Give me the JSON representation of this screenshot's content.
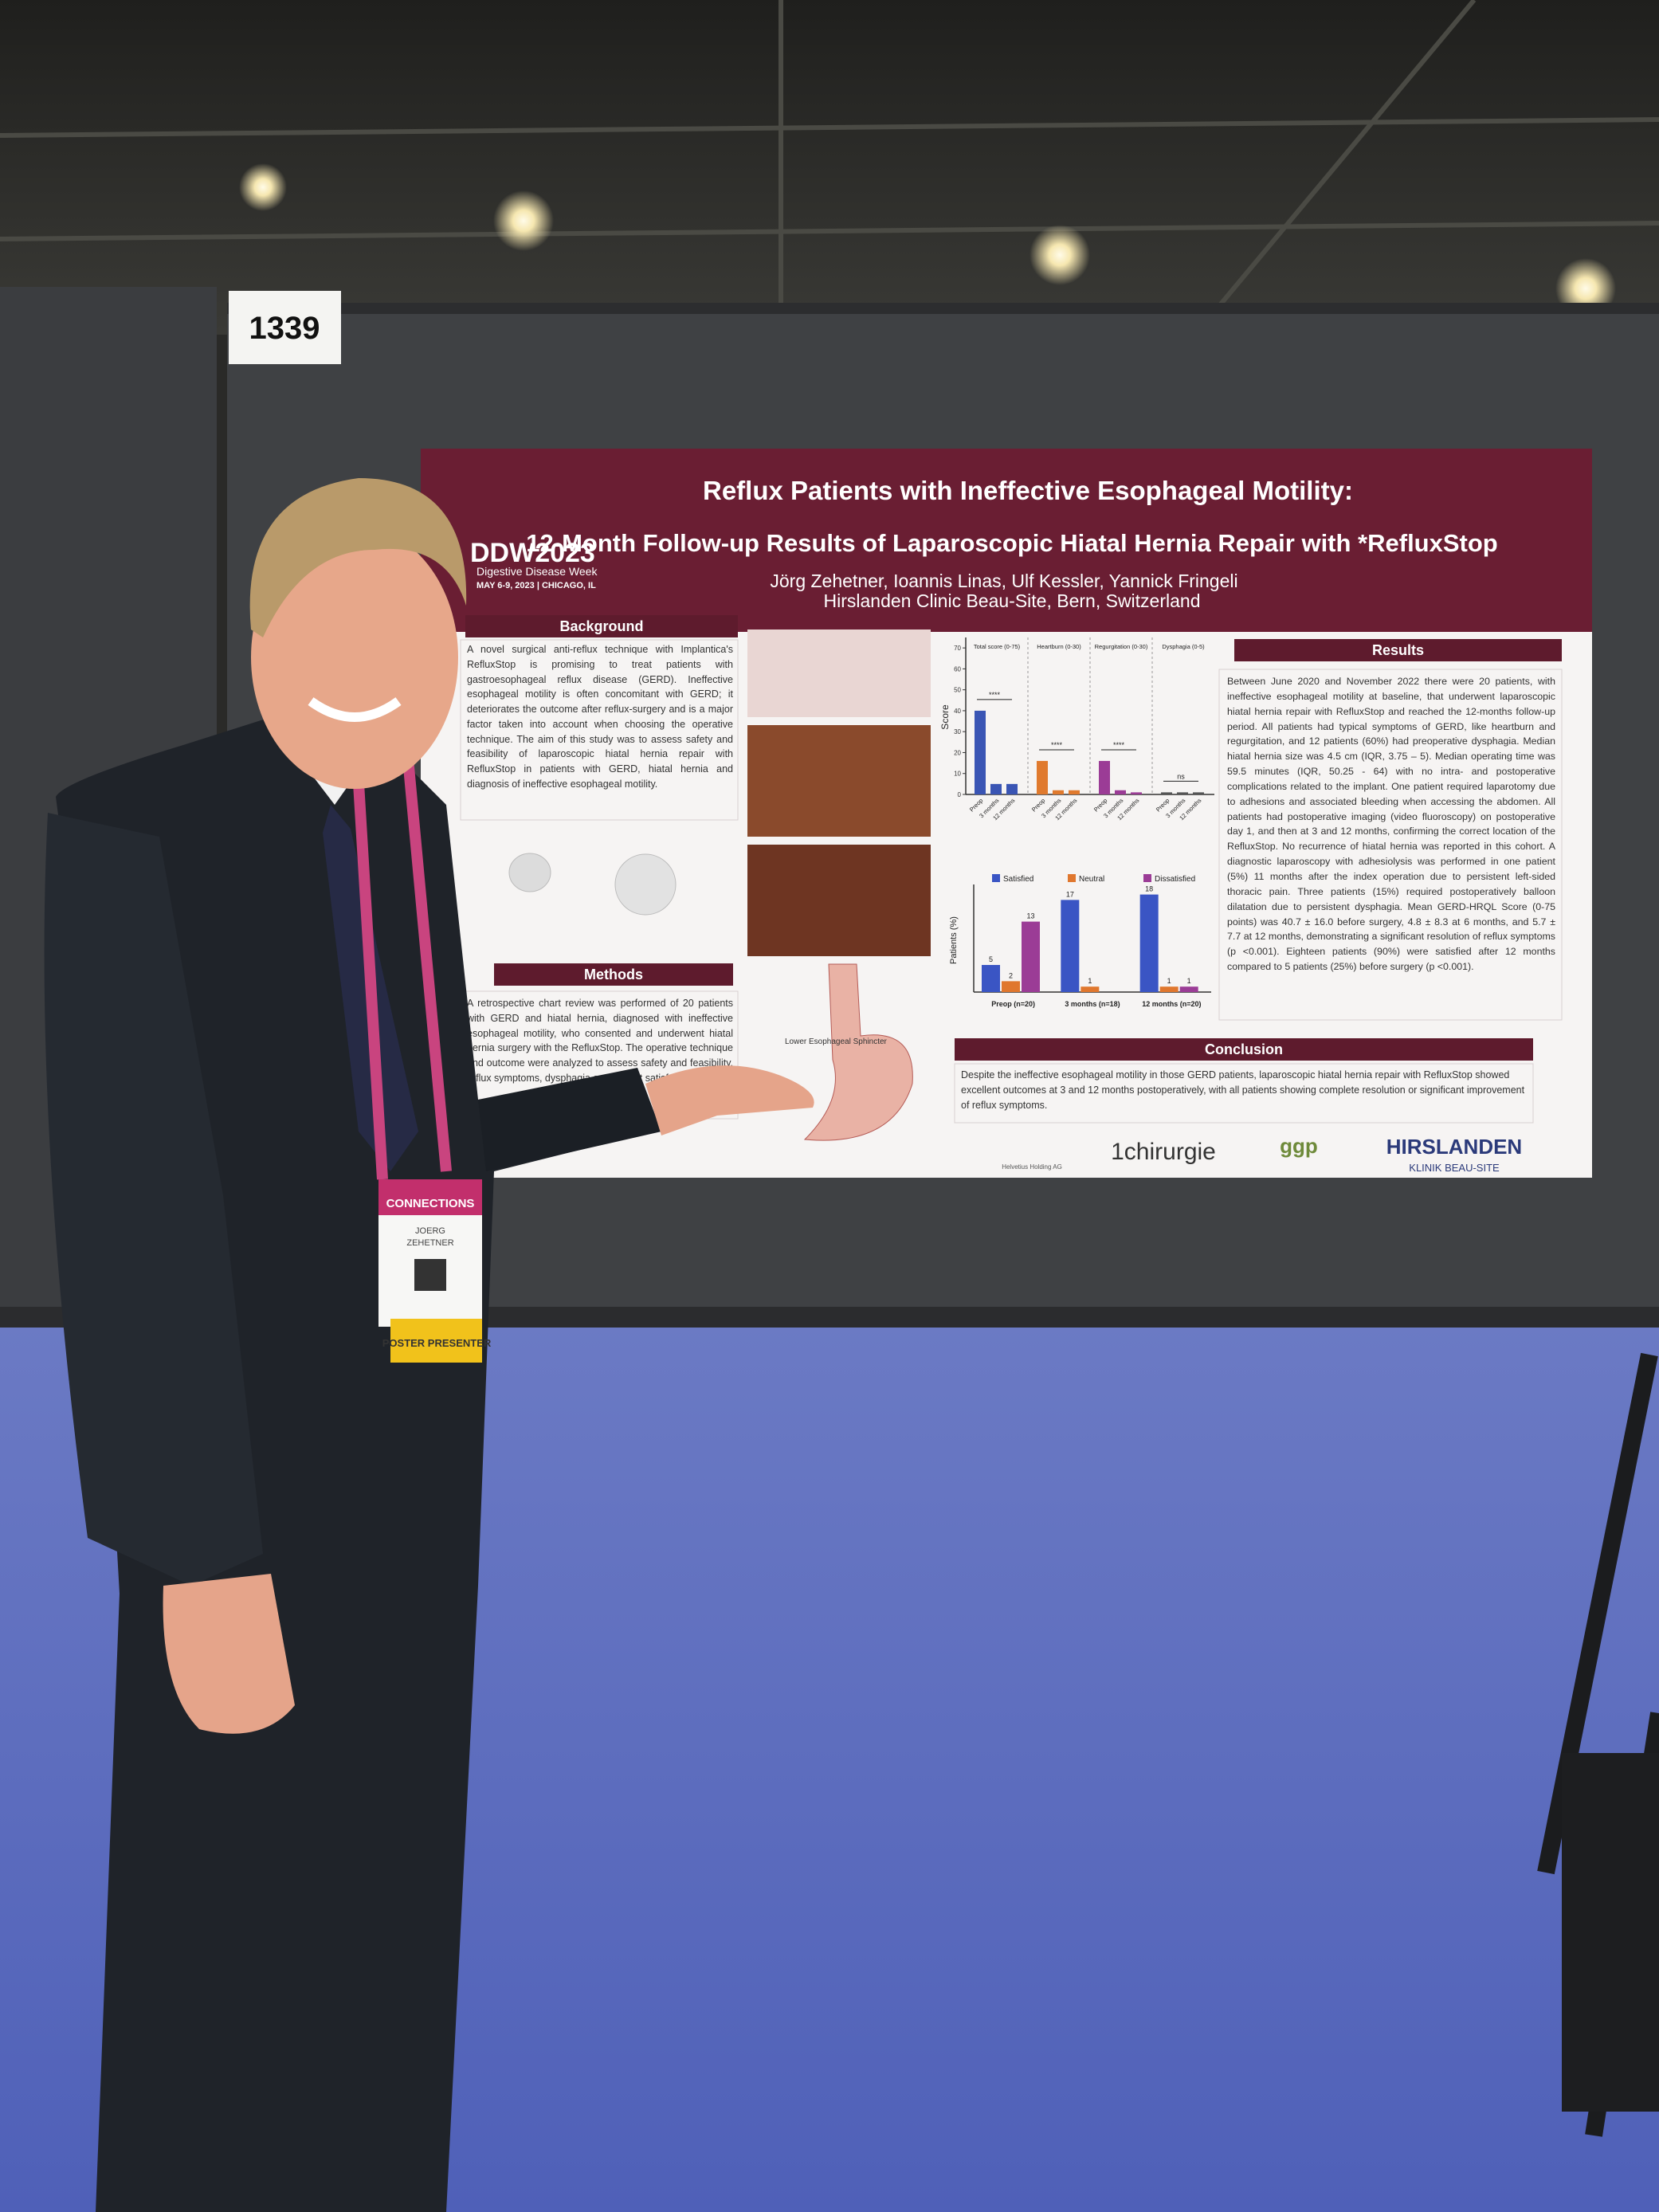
{
  "booth_number": "1339",
  "poster": {
    "title": [
      "Reflux Patients with Ineffective Esophageal Motility:",
      "12-Month Follow-up Results of Laparoscopic Hiatal Hernia Repair with *RefluxStop"
    ],
    "authors": "Jörg Zehetner, Ioannis Linas, Ulf Kessler, Yannick Fringeli",
    "affiliation": "Hirslanden Clinic Beau-Site, Bern, Switzerland",
    "logo": {
      "name": "DDW2023",
      "subtitle": "Digestive Disease Week",
      "dates": "MAY 6-9, 2023 | CHICAGO, IL"
    },
    "sections": {
      "background": {
        "heading": "Background",
        "text": "A novel surgical anti-reflux technique with Implantica's RefluxStop is promising to treat patients with gastroesophageal reflux disease (GERD). Ineffective esophageal motility is often concomitant with GERD; it deteriorates the outcome after reflux-surgery and is a major factor taken into account when choosing the operative technique. The aim of this study was to assess safety and feasibility of laparoscopic hiatal hernia repair with RefluxStop in patients with GERD, hiatal hernia and diagnosis of ineffective esophageal motility."
      },
      "methods": {
        "heading": "Methods",
        "text": "A retrospective chart review was performed of 20 patients with GERD and hiatal hernia, diagnosed with ineffective esophageal motility, who consented and underwent hiatal hernia surgery with the RefluxStop. The operative technique and outcome were analyzed to assess safety and feasibility, reflux symptoms, dysphagia and patient satisfaction."
      },
      "results": {
        "heading": "Results",
        "text": "Between June 2020 and November 2022 there were 20 patients, with ineffective esophageal motility at baseline, that underwent laparoscopic hiatal hernia repair with RefluxStop and reached the 12-months follow-up period. All patients had typical symptoms of GERD, like heartburn and regurgitation, and 12 patients (60%) had preoperative dysphagia. Median hiatal hernia size was 4.5 cm (IQR, 3.75 – 5). Median operating time was 59.5 minutes (IQR, 50.25 - 64) with no intra- and postoperative complications related to the implant. One patient required laparotomy due to adhesions and associated bleeding when accessing the abdomen. All patients had postoperative imaging (video fluoroscopy) on postoperative day 1, and then at 3 and 12 months, confirming the correct location of the RefluxStop. No recurrence of hiatal hernia was reported in this cohort. A diagnostic laparoscopy with adhesiolysis was performed in one patient (5%) 11 months after the index operation due to persistent left-sided thoracic pain. Three patients (15%) required postoperatively balloon dilatation due to persistent dysphagia. Mean GERD-HRQL Score (0-75 points) was 40.7 ± 16.0 before surgery, 4.8 ± 8.3 at 6 months, and 5.7 ± 7.7 at 12 months, demonstrating a significant resolution of reflux symptoms (p <0.001). Eighteen patients (90%) were satisfied after 12 months compared to 5 patients (25%) before surgery (p <0.001)."
      },
      "conclusion": {
        "heading": "Conclusion",
        "text": "Despite the ineffective esophageal motility in those GERD patients, laparoscopic hiatal hernia repair with RefluxStop showed excellent outcomes at 3 and 12 months postoperatively, with all patients showing complete resolution or significant improvement of reflux symptoms."
      }
    },
    "diagram_label": "Lower Esophageal Sphincter",
    "score_chart": {
      "type": "bar",
      "ylabel": "Score",
      "ylim": [
        0,
        75
      ],
      "yticks": [
        0,
        10,
        20,
        30,
        40,
        50,
        60,
        70
      ],
      "categories": [
        "Preop",
        "3 months",
        "12 months"
      ],
      "panels": [
        {
          "title": "Total score (0-75)",
          "significance": "****",
          "color": "#3a55b4",
          "values": [
            40,
            5,
            5
          ]
        },
        {
          "title": "Heartburn (0-30)",
          "significance": "****",
          "color": "#e07a2e",
          "values": [
            16,
            2,
            2
          ]
        },
        {
          "title": "Regurgitation (0-30)",
          "significance": "****",
          "color": "#9b3c96",
          "values": [
            16,
            2,
            1
          ]
        },
        {
          "title": "Dysphagia (0-5)",
          "significance": "ns",
          "color": "#555555",
          "values": [
            1,
            1,
            1
          ]
        }
      ]
    },
    "satisfaction_chart": {
      "type": "bar",
      "ylabel": "Patients (%)",
      "categories": [
        "Preop (n=20)",
        "3 months (n=18)",
        "12 months (n=20)"
      ],
      "series": [
        {
          "name": "Satisfied",
          "color": "#3a55c4",
          "values": [
            5,
            17,
            18
          ]
        },
        {
          "name": "Neutral",
          "color": "#e0772e",
          "values": [
            2,
            1,
            1
          ]
        },
        {
          "name": "Dissatisfied",
          "color": "#9b3c96",
          "values": [
            13,
            null,
            1
          ]
        }
      ]
    },
    "footer_logos": [
      "Helvetius Holding AG",
      "1chirurgie",
      "ggp",
      "HIRSLANDEN",
      "KLINIK BEAU-SITE"
    ]
  },
  "badge": {
    "banner": "CONNECTIONS",
    "first_name": "JOERG",
    "last_name": "ZEHETNER",
    "ribbon": "POSTER PRESENTER"
  }
}
